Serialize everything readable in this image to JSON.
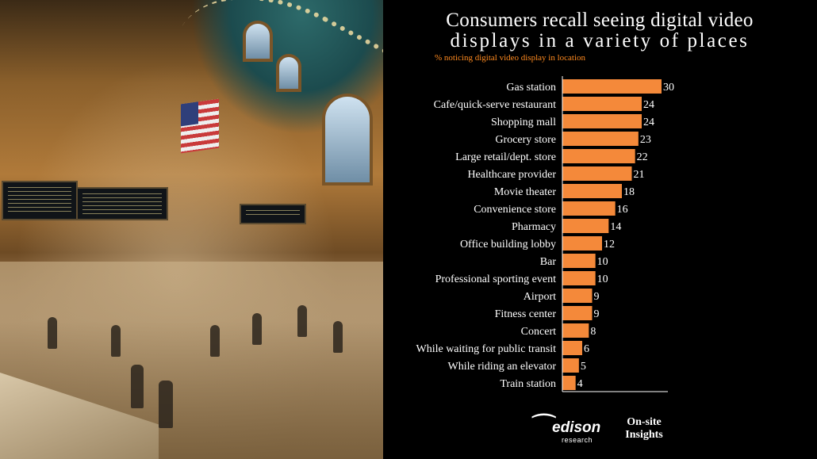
{
  "title_line1": "Consumers recall seeing digital video",
  "title_line2": "displays in a variety of places",
  "subtitle": "% noticing digital video display in location",
  "logo": {
    "name": "edison",
    "sub": "research",
    "icon": "edison-logo-icon"
  },
  "onsite": {
    "line1": "On-site",
    "line2": "Insights"
  },
  "colors": {
    "bar": "#f4893a",
    "subtitle": "#ff8a1f",
    "background": "#000000"
  },
  "chart_data": {
    "type": "bar",
    "orientation": "horizontal",
    "categories": [
      "Gas station",
      "Cafe/quick-serve restaurant",
      "Shopping mall",
      "Grocery store",
      "Large retail/dept. store",
      "Healthcare provider",
      "Movie theater",
      "Convenience store",
      "Pharmacy",
      "Office building lobby",
      "Bar",
      "Professional sporting event",
      "Airport",
      "Fitness center",
      "Concert",
      "While waiting for public transit",
      "While riding an elevator",
      "Train station"
    ],
    "values": [
      30,
      24,
      24,
      23,
      22,
      21,
      18,
      16,
      14,
      12,
      10,
      10,
      9,
      9,
      8,
      6,
      5,
      4
    ],
    "title": "Consumers recall seeing digital video displays in a variety of places",
    "subtitle": "% noticing digital video display in location",
    "xlabel": "",
    "ylabel": "",
    "xlim": [
      0,
      30
    ],
    "grid": false,
    "data_labels": true
  }
}
